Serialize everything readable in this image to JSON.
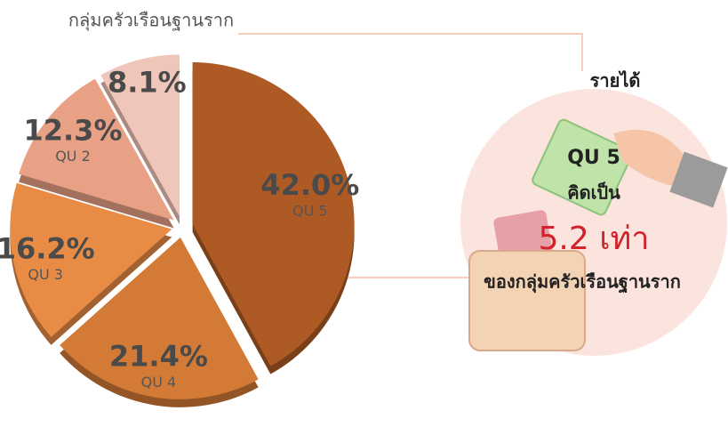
{
  "chart_data": {
    "type": "pie",
    "title": "กลุ่มครัวเรือนฐานราก",
    "categories": [
      "QU 5",
      "QU 4",
      "QU 3",
      "QU 2",
      null
    ],
    "values": [
      42.0,
      21.4,
      16.2,
      12.3,
      8.1
    ],
    "value_labels": [
      "42.0%",
      "21.4%",
      "16.2%",
      "12.3%",
      "8.1%"
    ],
    "colors": [
      "#ad5a24",
      "#d27a36",
      "#e88b45",
      "#e9a186",
      "#f1c6ba"
    ],
    "annotations": [
      "รายได้",
      "QU 5",
      "คิดเป็น",
      "5.2 เท่า",
      "ของกลุ่มครัวเรือนฐานราก"
    ]
  }
}
